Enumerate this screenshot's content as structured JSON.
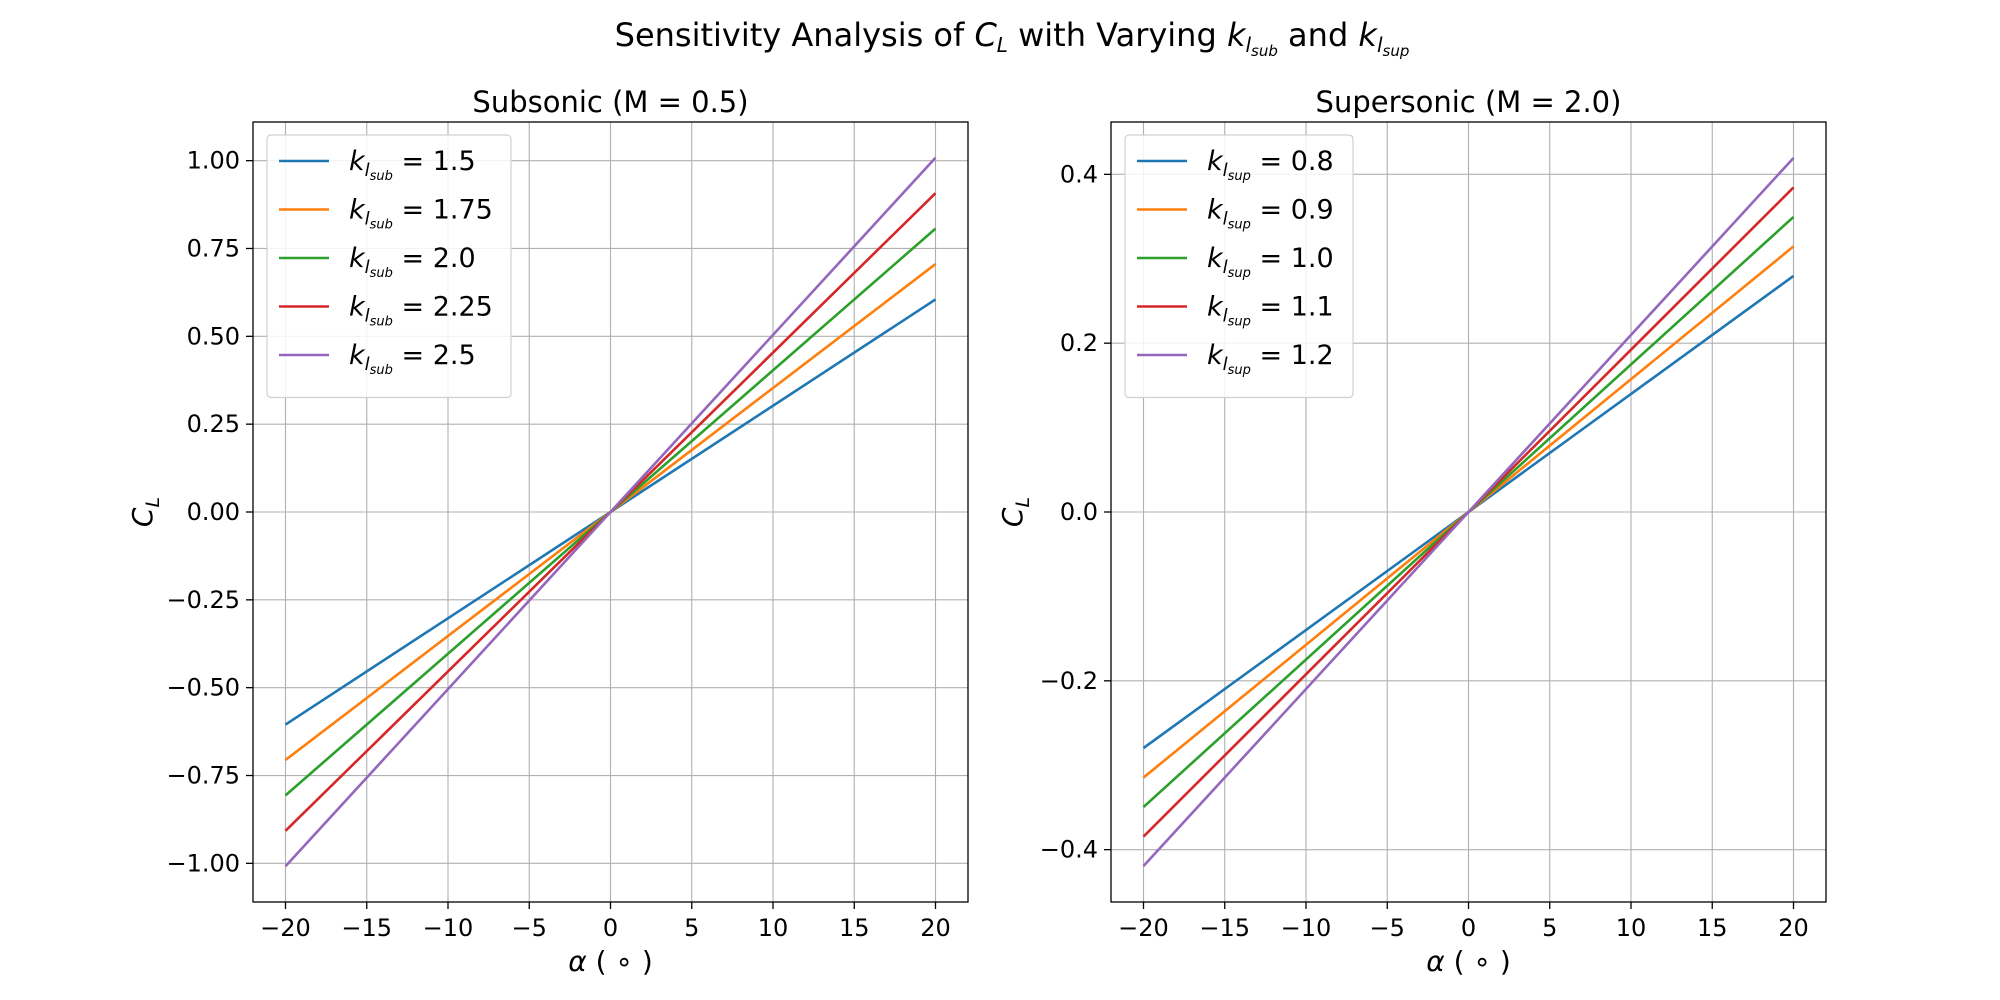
{
  "figure": {
    "title_prefix": "Sensitivity Analysis of ",
    "title_math_1": "C",
    "title_math_1_sub": "L",
    "title_middle": " with Varying ",
    "title_k": "k",
    "title_l": "l",
    "title_sub_1": "sub",
    "title_and": " and ",
    "title_sub_2": "sup"
  },
  "chart_data": [
    {
      "type": "line",
      "title": "Subsonic (M = 0.5)",
      "xlabel": "α (°)",
      "xlabel_parts": {
        "symbol": "α",
        "unit": "( ∘ )"
      },
      "ylabel": "C_L",
      "ylabel_parts": {
        "main": "C",
        "sub": "L"
      },
      "xlim": [
        -22,
        22
      ],
      "ylim": [
        -1.11,
        1.11
      ],
      "xticks": [
        -20,
        -15,
        -10,
        -5,
        0,
        5,
        10,
        15,
        20
      ],
      "xtick_labels": [
        "−20",
        "−15",
        "−10",
        "−5",
        "0",
        "5",
        "10",
        "15",
        "20"
      ],
      "yticks": [
        -1.0,
        -0.75,
        -0.5,
        -0.25,
        0.0,
        0.25,
        0.5,
        0.75,
        1.0
      ],
      "ytick_labels": [
        "−1.00",
        "−0.75",
        "−0.50",
        "−0.25",
        "0.00",
        "0.25",
        "0.50",
        "0.75",
        "1.00"
      ],
      "grid": true,
      "legend_position": "upper-left",
      "legend_subscript": "sub",
      "series": [
        {
          "name": "k_l_sub = 1.5",
          "legend_value": "1.5",
          "color": "#1f77b4",
          "x": [
            -20,
            20
          ],
          "y": [
            -0.6049,
            0.6049
          ]
        },
        {
          "name": "k_l_sub = 1.75",
          "legend_value": "1.75",
          "color": "#ff7f0e",
          "x": [
            -20,
            20
          ],
          "y": [
            -0.7057,
            0.7057
          ]
        },
        {
          "name": "k_l_sub = 2.0",
          "legend_value": "2.0",
          "color": "#2ca02c",
          "x": [
            -20,
            20
          ],
          "y": [
            -0.8065,
            0.8065
          ]
        },
        {
          "name": "k_l_sub = 2.25",
          "legend_value": "2.25",
          "color": "#d62728",
          "x": [
            -20,
            20
          ],
          "y": [
            -0.9074,
            0.9074
          ]
        },
        {
          "name": "k_l_sub = 2.5",
          "legend_value": "2.5",
          "color": "#9467bd",
          "x": [
            -20,
            20
          ],
          "y": [
            -1.0082,
            1.0082
          ]
        }
      ]
    },
    {
      "type": "line",
      "title": "Supersonic (M = 2.0)",
      "xlabel": "α (°)",
      "xlabel_parts": {
        "symbol": "α",
        "unit": "( ∘ )"
      },
      "ylabel": "C_L",
      "ylabel_parts": {
        "main": "C",
        "sub": "L"
      },
      "xlim": [
        -22,
        22
      ],
      "ylim": [
        -0.462,
        0.462
      ],
      "xticks": [
        -20,
        -15,
        -10,
        -5,
        0,
        5,
        10,
        15,
        20
      ],
      "xtick_labels": [
        "−20",
        "−15",
        "−10",
        "−5",
        "0",
        "5",
        "10",
        "15",
        "20"
      ],
      "yticks": [
        -0.4,
        -0.2,
        0.0,
        0.2,
        0.4
      ],
      "ytick_labels": [
        "−0.4",
        "−0.2",
        "0.0",
        "0.2",
        "0.4"
      ],
      "grid": true,
      "legend_position": "upper-left",
      "legend_subscript": "sup",
      "series": [
        {
          "name": "k_l_sup = 0.8",
          "legend_value": "0.8",
          "color": "#1f77b4",
          "x": [
            -20,
            20
          ],
          "y": [
            -0.2796,
            0.2796
          ]
        },
        {
          "name": "k_l_sup = 0.9",
          "legend_value": "0.9",
          "color": "#ff7f0e",
          "x": [
            -20,
            20
          ],
          "y": [
            -0.3146,
            0.3146
          ]
        },
        {
          "name": "k_l_sup = 1.0",
          "legend_value": "1.0",
          "color": "#2ca02c",
          "x": [
            -20,
            20
          ],
          "y": [
            -0.3495,
            0.3495
          ]
        },
        {
          "name": "k_l_sup = 1.1",
          "legend_value": "1.1",
          "color": "#d62728",
          "x": [
            -20,
            20
          ],
          "y": [
            -0.3845,
            0.3845
          ]
        },
        {
          "name": "k_l_sup = 1.2",
          "legend_value": "1.2",
          "color": "#9467bd",
          "x": [
            -20,
            20
          ],
          "y": [
            -0.4194,
            0.4194
          ]
        }
      ]
    }
  ]
}
